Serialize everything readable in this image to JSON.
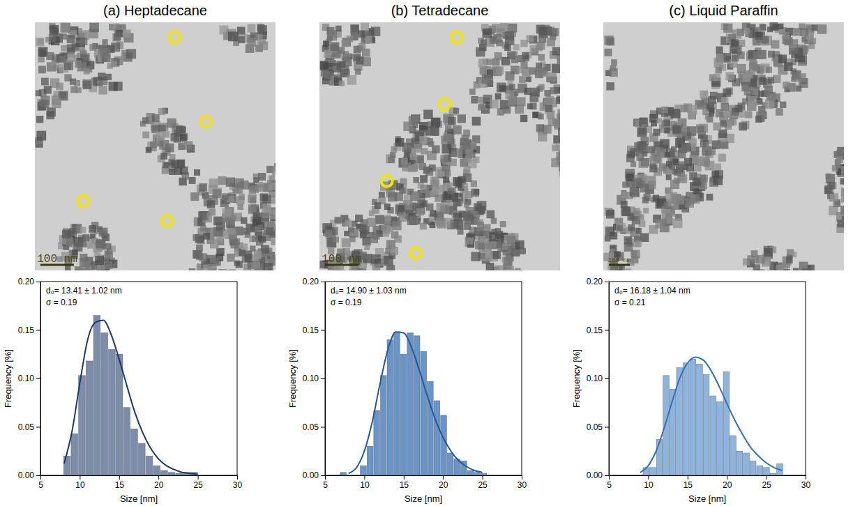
{
  "chart_data": [
    {
      "type": "histogram",
      "title": "(a) Heptadecane",
      "x_label": "Size [nm]",
      "y_label": "Frequency [%]",
      "annotations": [
        "d₀= 13.41 ± 1.02 nm",
        "σ = 0.19"
      ],
      "scale_bar": "100 nm",
      "bins": [
        7.9,
        8.85,
        9.8,
        10.75,
        11.7,
        12.65,
        13.6,
        14.55,
        15.5,
        16.45,
        17.4,
        18.35,
        19.3,
        20.25,
        21.2,
        22.15,
        23.1,
        24.05,
        25.0
      ],
      "values": [
        0.02,
        0.043,
        0.103,
        0.118,
        0.165,
        0.147,
        0.13,
        0.125,
        0.07,
        0.048,
        0.033,
        0.02,
        0.01,
        0.005,
        0.003,
        0.002,
        0.003,
        0.003
      ],
      "color": "#7d8ca7",
      "fit": {
        "x": [
          8,
          9,
          10,
          11,
          12,
          13,
          14,
          15,
          16,
          17,
          18,
          19,
          20,
          21,
          22,
          23,
          24,
          25
        ],
        "values": [
          0.012,
          0.045,
          0.095,
          0.14,
          0.158,
          0.16,
          0.145,
          0.12,
          0.092,
          0.065,
          0.044,
          0.028,
          0.017,
          0.01,
          0.006,
          0.003,
          0.002,
          0.001
        ],
        "color": "#1b3a6b"
      },
      "xlim": [
        5,
        30
      ],
      "xticks": [
        5,
        10,
        15,
        20,
        25,
        30
      ],
      "ylim": [
        0,
        0.2
      ],
      "yticks": [
        {
          "value": 0,
          "label": "0.00"
        },
        {
          "value": 0.05,
          "label": "0.05"
        },
        {
          "value": 0.1,
          "label": "0.10"
        },
        {
          "value": 0.15,
          "label": "0.15"
        },
        {
          "value": 0.2,
          "label": "0.20"
        }
      ]
    },
    {
      "type": "histogram",
      "title": "(b) Tetradecane",
      "x_label": "Size [nm]",
      "y_label": "Frequency [%]",
      "annotations": [
        "d₀= 14.90 ± 1.03 nm",
        "σ = 0.19"
      ],
      "scale_bar": "100 nm",
      "bins": [
        6.9,
        7.75,
        8.6,
        9.45,
        10.3,
        11.15,
        12.0,
        12.85,
        13.7,
        14.55,
        15.4,
        16.25,
        17.1,
        17.95,
        18.8,
        19.65,
        20.5,
        21.35,
        22.2,
        23.05,
        23.9,
        24.75,
        25.6
      ],
      "values": [
        0.003,
        0,
        0,
        0.01,
        0.03,
        0.067,
        0.103,
        0.14,
        0.147,
        0.125,
        0.147,
        0.144,
        0.128,
        0.097,
        0.077,
        0.062,
        0.023,
        0.017,
        0.015,
        0.005,
        0.003,
        0.002
      ],
      "color": "#6a93c7",
      "fit": {
        "x": [
          8,
          9,
          10,
          11,
          12,
          13,
          14,
          15,
          16,
          17,
          18,
          19,
          20,
          21,
          22,
          23,
          24,
          25
        ],
        "values": [
          0.002,
          0.008,
          0.025,
          0.055,
          0.095,
          0.13,
          0.148,
          0.147,
          0.132,
          0.108,
          0.082,
          0.058,
          0.039,
          0.025,
          0.015,
          0.009,
          0.005,
          0.003
        ],
        "color": "#1f5a9a"
      },
      "xlim": [
        5,
        30
      ],
      "xticks": [
        5,
        10,
        15,
        20,
        25,
        30
      ],
      "ylim": [
        0,
        0.2
      ],
      "yticks": [
        {
          "value": 0,
          "label": "0.00"
        },
        {
          "value": 0.05,
          "label": "0.05"
        },
        {
          "value": 0.1,
          "label": "0.10"
        },
        {
          "value": 0.15,
          "label": "0.15"
        },
        {
          "value": 0.2,
          "label": "0.20"
        }
      ]
    },
    {
      "type": "histogram",
      "title": "(c) Liquid Paraffin",
      "x_label": "Size [nm]",
      "y_label": "Frequency [%]",
      "annotations": [
        "d₀= 16.18 ± 1.04 nm",
        "σ = 0.21"
      ],
      "scale_bar": "100 nm",
      "bins": [
        9.3,
        10.15,
        11.0,
        11.85,
        12.7,
        13.55,
        14.4,
        15.25,
        16.1,
        16.95,
        17.8,
        18.65,
        19.5,
        20.35,
        21.2,
        22.05,
        22.9,
        23.75,
        24.6,
        25.45,
        26.3,
        27.15
      ],
      "values": [
        0.008,
        0.008,
        0.037,
        0.103,
        0.089,
        0.111,
        0.116,
        0.12,
        0.115,
        0.104,
        0.082,
        0.076,
        0.107,
        0.041,
        0.025,
        0.023,
        0.015,
        0.01,
        0.008,
        0.002,
        0.012
      ],
      "color": "#8fb4dc",
      "fit": {
        "x": [
          9,
          10,
          11,
          12,
          13,
          14,
          15,
          16,
          17,
          18,
          19,
          20,
          21,
          22,
          23,
          24,
          25,
          26,
          27
        ],
        "values": [
          0.003,
          0.01,
          0.025,
          0.048,
          0.075,
          0.1,
          0.116,
          0.122,
          0.119,
          0.108,
          0.092,
          0.074,
          0.057,
          0.042,
          0.029,
          0.02,
          0.013,
          0.008,
          0.005
        ],
        "color": "#2f72b5"
      },
      "xlim": [
        5,
        30
      ],
      "xticks": [
        5,
        10,
        15,
        20,
        25,
        30
      ],
      "ylim": [
        0,
        0.2
      ],
      "yticks": [
        {
          "value": 0,
          "label": "0.00"
        },
        {
          "value": 0.05,
          "label": "0.05"
        },
        {
          "value": 0.1,
          "label": "0.10"
        },
        {
          "value": 0.15,
          "label": "0.15"
        },
        {
          "value": 0.2,
          "label": "0.20"
        }
      ]
    }
  ]
}
